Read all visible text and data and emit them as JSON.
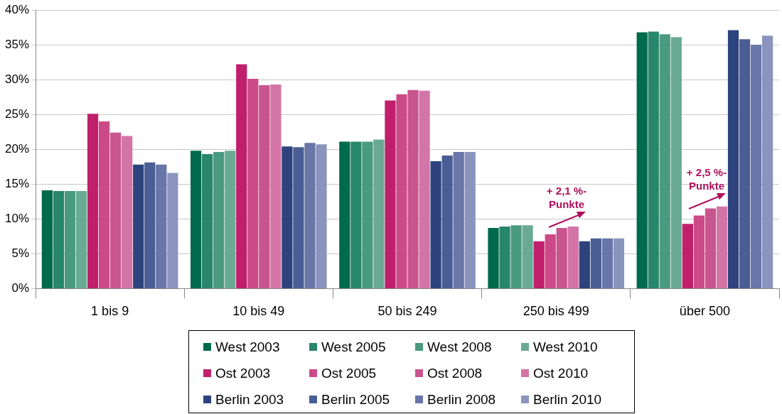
{
  "chart_data": {
    "type": "bar",
    "categories": [
      "1 bis 9",
      "10 bis 49",
      "50 bis 249",
      "250 bis 499",
      "über 500"
    ],
    "ylim": [
      0,
      40
    ],
    "yticks": [
      {
        "value": 0,
        "label": "0%"
      },
      {
        "value": 5,
        "label": "5%"
      },
      {
        "value": 10,
        "label": "10%"
      },
      {
        "value": 15,
        "label": "15%"
      },
      {
        "value": 20,
        "label": "20%"
      },
      {
        "value": 25,
        "label": "25%"
      },
      {
        "value": 30,
        "label": "30%"
      },
      {
        "value": 35,
        "label": "35%"
      },
      {
        "value": 40,
        "label": "40%"
      }
    ],
    "grid": "y",
    "legend": "bottom",
    "series": [
      {
        "name": "West 2003",
        "color": "#006b4c",
        "values": [
          14.1,
          19.8,
          21.1,
          8.7,
          36.8
        ]
      },
      {
        "name": "West 2005",
        "color": "#28866a",
        "values": [
          14.0,
          19.3,
          21.1,
          8.9,
          36.9
        ]
      },
      {
        "name": "West 2008",
        "color": "#4a9a80",
        "values": [
          14.0,
          19.6,
          21.1,
          9.1,
          36.5
        ]
      },
      {
        "name": "West 2010",
        "color": "#6aaa94",
        "values": [
          14.0,
          19.8,
          21.4,
          9.1,
          36.1
        ]
      },
      {
        "name": "Ost 2003",
        "color": "#c01f6c",
        "values": [
          25.1,
          32.2,
          27.0,
          6.8,
          9.3
        ]
      },
      {
        "name": "Ost 2005",
        "color": "#cc4a88",
        "values": [
          24.0,
          30.1,
          27.9,
          7.8,
          10.5
        ]
      },
      {
        "name": "Ost 2008",
        "color": "#c9558e",
        "values": [
          22.4,
          29.2,
          28.5,
          8.7,
          11.5
        ]
      },
      {
        "name": "Ost 2010",
        "color": "#d374a6",
        "values": [
          21.9,
          29.3,
          28.4,
          8.9,
          11.8
        ]
      },
      {
        "name": "Berlin 2003",
        "color": "#2e437e",
        "values": [
          17.8,
          20.4,
          18.3,
          6.8,
          37.1
        ]
      },
      {
        "name": "Berlin 2005",
        "color": "#4a5e95",
        "values": [
          18.1,
          20.3,
          19.1,
          7.2,
          35.8
        ]
      },
      {
        "name": "Berlin 2008",
        "color": "#6876a8",
        "values": [
          17.8,
          20.9,
          19.6,
          7.2,
          35.0
        ]
      },
      {
        "name": "Berlin 2010",
        "color": "#8a94bd",
        "values": [
          16.6,
          20.7,
          19.6,
          7.2,
          36.3
        ]
      }
    ],
    "annotations": [
      "+ 2,1 %-\nPunkte",
      "+ 2,5 %-\nPunkte"
    ]
  }
}
